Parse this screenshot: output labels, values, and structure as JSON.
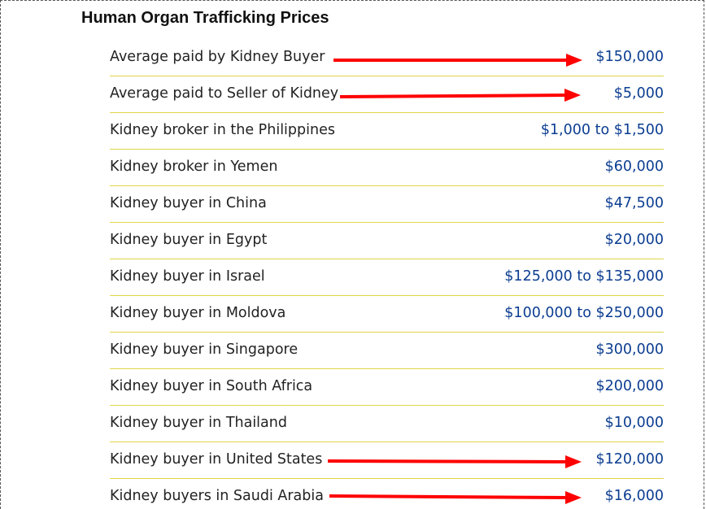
{
  "title": "Human Organ Trafficking Prices",
  "accent_colors": {
    "arrow": "#ff0000",
    "value_text": "#0b3d91",
    "row_divider": "#e0d64a"
  },
  "rows": [
    {
      "label": "Average paid by Kidney Buyer",
      "value": "$150,000",
      "highlighted": true
    },
    {
      "label": "Average paid to Seller of Kidney",
      "value": "$5,000",
      "highlighted": true
    },
    {
      "label": "Kidney broker in the Philippines",
      "value": "$1,000 to $1,500",
      "highlighted": false
    },
    {
      "label": "Kidney broker in Yemen",
      "value": "$60,000",
      "highlighted": false
    },
    {
      "label": "Kidney buyer in China",
      "value": "$47,500",
      "highlighted": false
    },
    {
      "label": "Kidney buyer in Egypt",
      "value": "$20,000",
      "highlighted": false
    },
    {
      "label": "Kidney buyer in Israel",
      "value": "$125,000 to $135,000",
      "highlighted": false
    },
    {
      "label": "Kidney buyer in Moldova",
      "value": "$100,000 to $250,000",
      "highlighted": false
    },
    {
      "label": "Kidney buyer in Singapore",
      "value": "$300,000",
      "highlighted": false
    },
    {
      "label": "Kidney buyer in South Africa",
      "value": "$200,000",
      "highlighted": false
    },
    {
      "label": "Kidney buyer in Thailand",
      "value": "$10,000",
      "highlighted": false
    },
    {
      "label": "Kidney buyer in United States",
      "value": "$120,000",
      "highlighted": true
    },
    {
      "label": "Kidney buyers in Saudi Arabia",
      "value": "$16,000",
      "highlighted": true
    }
  ]
}
